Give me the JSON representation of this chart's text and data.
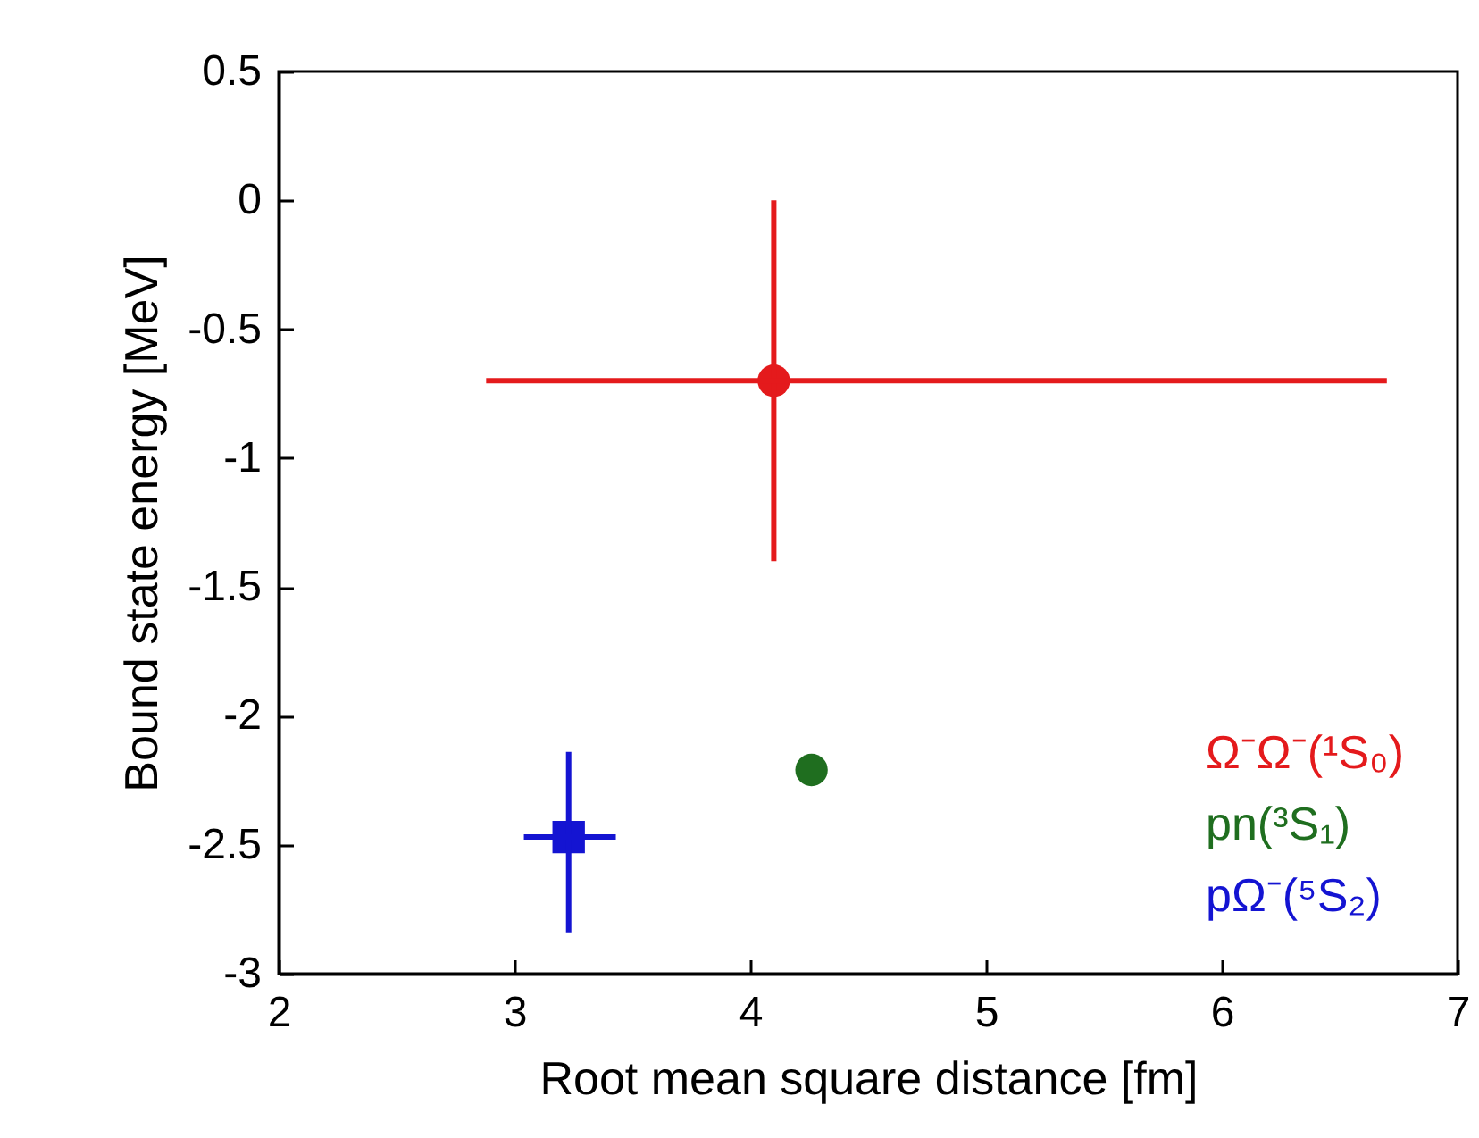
{
  "chart_data": {
    "type": "scatter",
    "xlabel": "Root mean square distance [fm]",
    "ylabel": "Bound state energy [MeV]",
    "xlim": [
      2,
      7
    ],
    "xticks": [
      2,
      3,
      4,
      5,
      6,
      7
    ],
    "ylim": [
      -3,
      0.5
    ],
    "yticks": [
      -3,
      -2.5,
      -2,
      -1.5,
      -1,
      -0.5,
      0,
      0.5
    ],
    "grid": false,
    "legend": "bottom right",
    "series": [
      {
        "name": "Ω⁻Ω⁻(¹S₀)",
        "color": "#e41a1c",
        "marker": "circle",
        "x": [
          4.1
        ],
        "values": [
          -0.7
        ],
        "errors": [
          [
            -1.4,
            0.0
          ]
        ],
        "xerrors": [
          [
            2.88,
            6.7
          ]
        ]
      },
      {
        "name": "pn(³S₁)",
        "color": "#1f6e1f",
        "marker": "circle",
        "x": [
          4.26
        ],
        "values": [
          -2.21
        ]
      },
      {
        "name": "pΩ⁻(⁵S₂)",
        "color": "#1414d2",
        "marker": "square",
        "x": [
          3.23
        ],
        "values": [
          -2.47
        ],
        "errors": [
          [
            -2.84,
            -2.14
          ]
        ],
        "xerrors": [
          [
            3.04,
            3.43
          ]
        ]
      }
    ]
  }
}
